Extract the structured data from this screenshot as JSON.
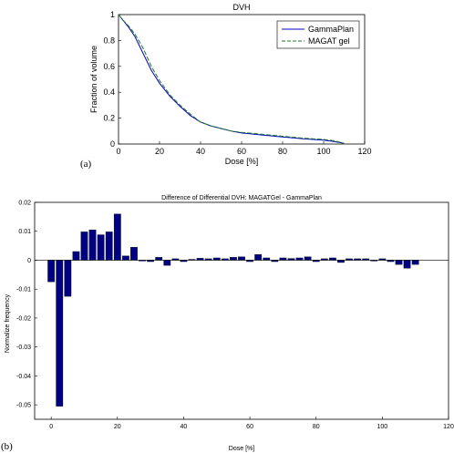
{
  "chart_data": [
    {
      "type": "line",
      "title": "DVH",
      "xlabel": "Dose [%]",
      "ylabel": "Fraction of volume",
      "panel_label": "(a)",
      "xlim": [
        0,
        120
      ],
      "ylim": [
        0,
        1
      ],
      "xticks": [
        "0",
        "20",
        "40",
        "60",
        "80",
        "100",
        "120"
      ],
      "yticks": [
        "0",
        "0.2",
        "0.4",
        "0.6",
        "0.8",
        "1"
      ],
      "legend_position": "top-right",
      "series": [
        {
          "name": "GammaPlan",
          "color": "#0000cc",
          "style": "solid",
          "x": [
            0,
            2,
            5,
            8,
            12,
            16,
            20,
            25,
            30,
            35,
            40,
            45,
            50,
            55,
            60,
            70,
            80,
            90,
            100,
            105,
            110
          ],
          "y": [
            1.0,
            0.96,
            0.9,
            0.83,
            0.7,
            0.57,
            0.47,
            0.37,
            0.29,
            0.22,
            0.17,
            0.14,
            0.12,
            0.1,
            0.085,
            0.07,
            0.055,
            0.04,
            0.03,
            0.02,
            0.005
          ]
        },
        {
          "name": "MAGAT gel",
          "color": "#1f7a1f",
          "style": "dashed",
          "x": [
            0,
            2,
            5,
            8,
            12,
            16,
            20,
            25,
            30,
            35,
            40,
            45,
            50,
            55,
            60,
            70,
            80,
            90,
            100,
            105,
            110
          ],
          "y": [
            1.0,
            0.96,
            0.91,
            0.85,
            0.74,
            0.6,
            0.49,
            0.38,
            0.3,
            0.23,
            0.17,
            0.14,
            0.12,
            0.1,
            0.09,
            0.075,
            0.06,
            0.045,
            0.035,
            0.025,
            0.005
          ]
        }
      ]
    },
    {
      "type": "bar",
      "title": "Difference of Differential DVH: MAGATGel - GammaPlan",
      "xlabel": "Dose [%]",
      "ylabel": "Normalize frequency",
      "panel_label": "(b)",
      "xlim": [
        -5,
        120
      ],
      "ylim": [
        -0.055,
        0.02
      ],
      "xticks": [
        "0",
        "20",
        "40",
        "60",
        "80",
        "100",
        "120"
      ],
      "yticks": [
        "-0.05",
        "-0.04",
        "-0.03",
        "-0.02",
        "-0.01",
        "0",
        "0.01",
        "0.02"
      ],
      "bar_color": "#000080",
      "x": [
        0,
        2.5,
        5,
        7.5,
        10,
        12.5,
        15,
        17.5,
        20,
        22.5,
        25,
        27.5,
        30,
        32.5,
        35,
        37.5,
        40,
        42.5,
        45,
        47.5,
        50,
        52.5,
        55,
        57.5,
        60,
        62.5,
        65,
        67.5,
        70,
        72.5,
        75,
        77.5,
        80,
        82.5,
        85,
        87.5,
        90,
        92.5,
        95,
        97.5,
        100,
        102.5,
        105,
        107.5,
        110
      ],
      "values": [
        -0.0075,
        -0.0505,
        -0.0125,
        0.003,
        0.0098,
        0.0105,
        0.0088,
        0.0098,
        0.016,
        0.0015,
        0.0045,
        -0.0003,
        -0.0005,
        0.001,
        -0.0018,
        0.0005,
        -0.0005,
        0.0003,
        0.0007,
        0.0005,
        0.0008,
        0.0005,
        0.001,
        0.0012,
        -0.0005,
        0.002,
        0.0008,
        -0.0005,
        0.0008,
        0.0006,
        0.0008,
        0.0012,
        -0.0005,
        0.0005,
        0.0008,
        -0.0008,
        0.0005,
        0.0005,
        0.0005,
        -0.0003,
        0.0005,
        -0.0005,
        -0.0015,
        -0.0028,
        -0.0015
      ]
    }
  ]
}
